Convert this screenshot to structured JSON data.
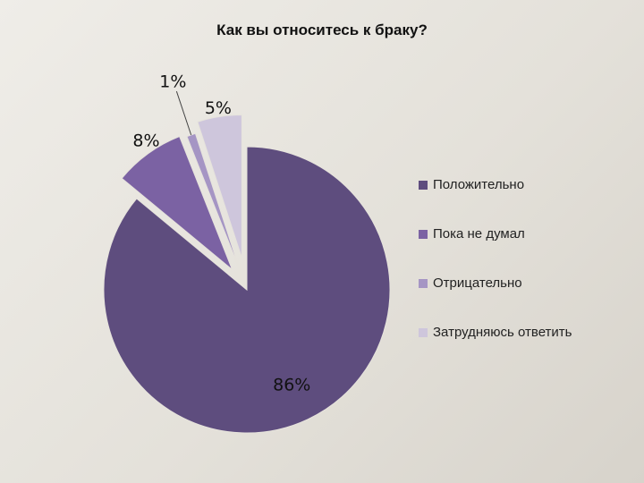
{
  "chart_data": {
    "type": "pie",
    "title": "Как вы относитесь к браку?",
    "categories": [
      "Положительно",
      "Пока не думал",
      "Отрицательно",
      "Затрудняюсь ответить"
    ],
    "values": [
      86,
      8,
      1,
      5
    ],
    "data_labels": [
      "86%",
      "8%",
      "1%",
      "5%"
    ],
    "colors": [
      "#5e4d7e",
      "#7b62a3",
      "#a595c4",
      "#cec6dc"
    ],
    "legend_position": "right",
    "exploded": true
  }
}
